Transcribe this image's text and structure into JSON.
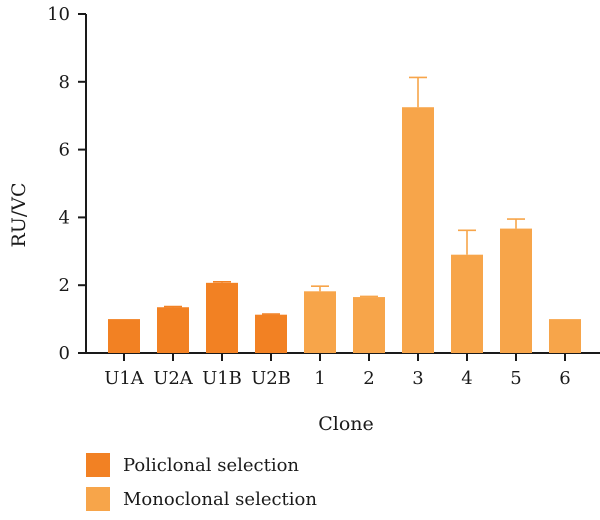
{
  "chart_data": {
    "type": "bar",
    "xlabel": "Clone",
    "ylabel": "RU/VC",
    "ylim": [
      0,
      10
    ],
    "yticks": [
      0,
      2,
      4,
      6,
      8,
      10
    ],
    "categories": [
      "U1A",
      "U2A",
      "U1B",
      "U2B",
      "1",
      "2",
      "3",
      "4",
      "5",
      "6"
    ],
    "values": [
      1.0,
      1.35,
      2.07,
      1.13,
      1.82,
      1.65,
      7.25,
      2.9,
      3.67,
      1.0
    ],
    "error_upper": [
      0,
      0.02,
      0.03,
      0.02,
      0.15,
      0.02,
      0.88,
      0.72,
      0.28,
      0
    ],
    "group": [
      "Policlonal selection",
      "Policlonal selection",
      "Policlonal selection",
      "Policlonal selection",
      "Monoclonal selection",
      "Monoclonal selection",
      "Monoclonal selection",
      "Monoclonal selection",
      "Monoclonal selection",
      "Monoclonal selection"
    ],
    "legend": [
      {
        "label": "Policlonal selection",
        "color": "#f28123"
      },
      {
        "label": "Monoclonal selection",
        "color": "#f7a54a"
      }
    ],
    "grid": false
  }
}
